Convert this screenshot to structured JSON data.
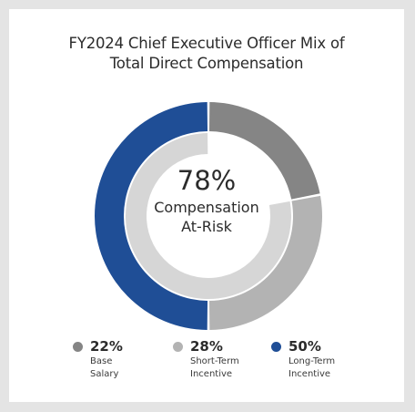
{
  "chart_data": {
    "type": "pie",
    "title_lines": [
      "FY2024 Chief Executive Officer Mix of",
      "Total Direct Compensation"
    ],
    "center": {
      "value": "78%",
      "label_lines": [
        "Compensation",
        "At-Risk"
      ]
    },
    "slices": [
      {
        "name": "Base Salary",
        "label_lines": [
          "Base",
          "Salary"
        ],
        "value": 22,
        "display": "22%",
        "color": "#858585"
      },
      {
        "name": "Short-Term Incentive",
        "label_lines": [
          "Short-Term",
          "Incentive"
        ],
        "value": 28,
        "display": "28%",
        "color": "#b3b3b3"
      },
      {
        "name": "Long-Term Incentive",
        "label_lines": [
          "Long-Term",
          "Incentive"
        ],
        "value": 50,
        "display": "50%",
        "color": "#1f4e96"
      }
    ],
    "inner_ring": {
      "name": "Compensation At-Risk",
      "value": 78,
      "color": "#d6d6d6"
    }
  }
}
